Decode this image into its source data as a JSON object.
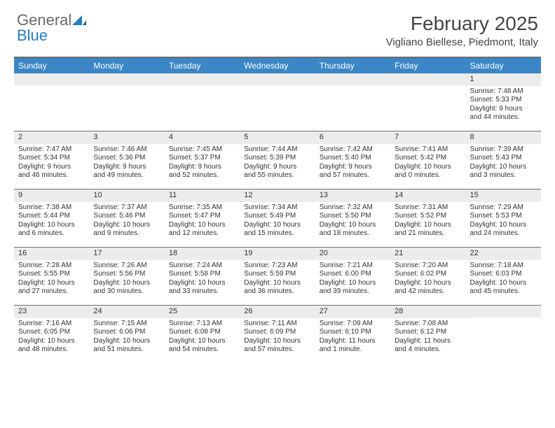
{
  "brand": {
    "general": "General",
    "blue": "Blue"
  },
  "title": "February 2025",
  "location": "Vigliano Biellese, Piedmont, Italy",
  "colors": {
    "header_bar": "#3b86c6",
    "daynum_bg": "#ececec",
    "rule": "#6f6f6f",
    "brand_gray": "#6a6a6a",
    "brand_blue": "#2a7cc4",
    "text": "#333333",
    "background": "#ffffff"
  },
  "day_names": [
    "Sunday",
    "Monday",
    "Tuesday",
    "Wednesday",
    "Thursday",
    "Friday",
    "Saturday"
  ],
  "weeks": [
    [
      {
        "n": "",
        "sr": "",
        "ss": "",
        "dl1": "",
        "dl2": ""
      },
      {
        "n": "",
        "sr": "",
        "ss": "",
        "dl1": "",
        "dl2": ""
      },
      {
        "n": "",
        "sr": "",
        "ss": "",
        "dl1": "",
        "dl2": ""
      },
      {
        "n": "",
        "sr": "",
        "ss": "",
        "dl1": "",
        "dl2": ""
      },
      {
        "n": "",
        "sr": "",
        "ss": "",
        "dl1": "",
        "dl2": ""
      },
      {
        "n": "",
        "sr": "",
        "ss": "",
        "dl1": "",
        "dl2": ""
      },
      {
        "n": "1",
        "sr": "Sunrise: 7:48 AM",
        "ss": "Sunset: 5:33 PM",
        "dl1": "Daylight: 9 hours",
        "dl2": "and 44 minutes."
      }
    ],
    [
      {
        "n": "2",
        "sr": "Sunrise: 7:47 AM",
        "ss": "Sunset: 5:34 PM",
        "dl1": "Daylight: 9 hours",
        "dl2": "and 46 minutes."
      },
      {
        "n": "3",
        "sr": "Sunrise: 7:46 AM",
        "ss": "Sunset: 5:36 PM",
        "dl1": "Daylight: 9 hours",
        "dl2": "and 49 minutes."
      },
      {
        "n": "4",
        "sr": "Sunrise: 7:45 AM",
        "ss": "Sunset: 5:37 PM",
        "dl1": "Daylight: 9 hours",
        "dl2": "and 52 minutes."
      },
      {
        "n": "5",
        "sr": "Sunrise: 7:44 AM",
        "ss": "Sunset: 5:39 PM",
        "dl1": "Daylight: 9 hours",
        "dl2": "and 55 minutes."
      },
      {
        "n": "6",
        "sr": "Sunrise: 7:42 AM",
        "ss": "Sunset: 5:40 PM",
        "dl1": "Daylight: 9 hours",
        "dl2": "and 57 minutes."
      },
      {
        "n": "7",
        "sr": "Sunrise: 7:41 AM",
        "ss": "Sunset: 5:42 PM",
        "dl1": "Daylight: 10 hours",
        "dl2": "and 0 minutes."
      },
      {
        "n": "8",
        "sr": "Sunrise: 7:39 AM",
        "ss": "Sunset: 5:43 PM",
        "dl1": "Daylight: 10 hours",
        "dl2": "and 3 minutes."
      }
    ],
    [
      {
        "n": "9",
        "sr": "Sunrise: 7:38 AM",
        "ss": "Sunset: 5:44 PM",
        "dl1": "Daylight: 10 hours",
        "dl2": "and 6 minutes."
      },
      {
        "n": "10",
        "sr": "Sunrise: 7:37 AM",
        "ss": "Sunset: 5:46 PM",
        "dl1": "Daylight: 10 hours",
        "dl2": "and 9 minutes."
      },
      {
        "n": "11",
        "sr": "Sunrise: 7:35 AM",
        "ss": "Sunset: 5:47 PM",
        "dl1": "Daylight: 10 hours",
        "dl2": "and 12 minutes."
      },
      {
        "n": "12",
        "sr": "Sunrise: 7:34 AM",
        "ss": "Sunset: 5:49 PM",
        "dl1": "Daylight: 10 hours",
        "dl2": "and 15 minutes."
      },
      {
        "n": "13",
        "sr": "Sunrise: 7:32 AM",
        "ss": "Sunset: 5:50 PM",
        "dl1": "Daylight: 10 hours",
        "dl2": "and 18 minutes."
      },
      {
        "n": "14",
        "sr": "Sunrise: 7:31 AM",
        "ss": "Sunset: 5:52 PM",
        "dl1": "Daylight: 10 hours",
        "dl2": "and 21 minutes."
      },
      {
        "n": "15",
        "sr": "Sunrise: 7:29 AM",
        "ss": "Sunset: 5:53 PM",
        "dl1": "Daylight: 10 hours",
        "dl2": "and 24 minutes."
      }
    ],
    [
      {
        "n": "16",
        "sr": "Sunrise: 7:28 AM",
        "ss": "Sunset: 5:55 PM",
        "dl1": "Daylight: 10 hours",
        "dl2": "and 27 minutes."
      },
      {
        "n": "17",
        "sr": "Sunrise: 7:26 AM",
        "ss": "Sunset: 5:56 PM",
        "dl1": "Daylight: 10 hours",
        "dl2": "and 30 minutes."
      },
      {
        "n": "18",
        "sr": "Sunrise: 7:24 AM",
        "ss": "Sunset: 5:58 PM",
        "dl1": "Daylight: 10 hours",
        "dl2": "and 33 minutes."
      },
      {
        "n": "19",
        "sr": "Sunrise: 7:23 AM",
        "ss": "Sunset: 5:59 PM",
        "dl1": "Daylight: 10 hours",
        "dl2": "and 36 minutes."
      },
      {
        "n": "20",
        "sr": "Sunrise: 7:21 AM",
        "ss": "Sunset: 6:00 PM",
        "dl1": "Daylight: 10 hours",
        "dl2": "and 39 minutes."
      },
      {
        "n": "21",
        "sr": "Sunrise: 7:20 AM",
        "ss": "Sunset: 6:02 PM",
        "dl1": "Daylight: 10 hours",
        "dl2": "and 42 minutes."
      },
      {
        "n": "22",
        "sr": "Sunrise: 7:18 AM",
        "ss": "Sunset: 6:03 PM",
        "dl1": "Daylight: 10 hours",
        "dl2": "and 45 minutes."
      }
    ],
    [
      {
        "n": "23",
        "sr": "Sunrise: 7:16 AM",
        "ss": "Sunset: 6:05 PM",
        "dl1": "Daylight: 10 hours",
        "dl2": "and 48 minutes."
      },
      {
        "n": "24",
        "sr": "Sunrise: 7:15 AM",
        "ss": "Sunset: 6:06 PM",
        "dl1": "Daylight: 10 hours",
        "dl2": "and 51 minutes."
      },
      {
        "n": "25",
        "sr": "Sunrise: 7:13 AM",
        "ss": "Sunset: 6:08 PM",
        "dl1": "Daylight: 10 hours",
        "dl2": "and 54 minutes."
      },
      {
        "n": "26",
        "sr": "Sunrise: 7:11 AM",
        "ss": "Sunset: 6:09 PM",
        "dl1": "Daylight: 10 hours",
        "dl2": "and 57 minutes."
      },
      {
        "n": "27",
        "sr": "Sunrise: 7:09 AM",
        "ss": "Sunset: 6:10 PM",
        "dl1": "Daylight: 11 hours",
        "dl2": "and 1 minute."
      },
      {
        "n": "28",
        "sr": "Sunrise: 7:08 AM",
        "ss": "Sunset: 6:12 PM",
        "dl1": "Daylight: 11 hours",
        "dl2": "and 4 minutes."
      },
      {
        "n": "",
        "sr": "",
        "ss": "",
        "dl1": "",
        "dl2": ""
      }
    ]
  ]
}
